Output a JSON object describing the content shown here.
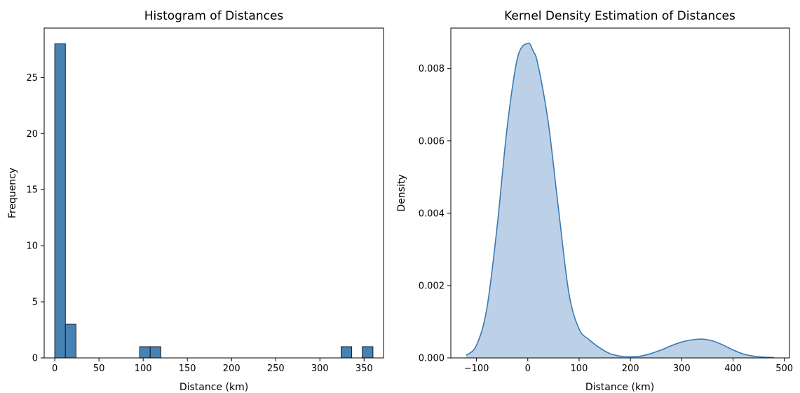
{
  "chart_data": [
    {
      "type": "bar",
      "title": "Histogram of Distances",
      "xlabel": "Distance (km)",
      "ylabel": "Frequency",
      "xlim": [
        -12.0,
        372.0
      ],
      "ylim": [
        0,
        29.4
      ],
      "xticks": [
        "0",
        "50",
        "100",
        "150",
        "200",
        "250",
        "300",
        "350"
      ],
      "yticks": [
        "0",
        "5",
        "10",
        "15",
        "20",
        "25"
      ],
      "bin_width": 12.0,
      "bins": [
        {
          "x0": 0.0,
          "count": 28
        },
        {
          "x0": 12.0,
          "count": 3
        },
        {
          "x0": 24.0,
          "count": 0
        },
        {
          "x0": 36.0,
          "count": 0
        },
        {
          "x0": 48.0,
          "count": 0
        },
        {
          "x0": 60.0,
          "count": 0
        },
        {
          "x0": 72.0,
          "count": 0
        },
        {
          "x0": 84.0,
          "count": 0
        },
        {
          "x0": 96.0,
          "count": 1
        },
        {
          "x0": 108.0,
          "count": 1
        },
        {
          "x0": 120.0,
          "count": 0
        },
        {
          "x0": 132.0,
          "count": 0
        },
        {
          "x0": 144.0,
          "count": 0
        },
        {
          "x0": 156.0,
          "count": 0
        },
        {
          "x0": 168.0,
          "count": 0
        },
        {
          "x0": 180.0,
          "count": 0
        },
        {
          "x0": 192.0,
          "count": 0
        },
        {
          "x0": 204.0,
          "count": 0
        },
        {
          "x0": 216.0,
          "count": 0
        },
        {
          "x0": 228.0,
          "count": 0
        },
        {
          "x0": 240.0,
          "count": 0
        },
        {
          "x0": 252.0,
          "count": 0
        },
        {
          "x0": 264.0,
          "count": 0
        },
        {
          "x0": 276.0,
          "count": 0
        },
        {
          "x0": 288.0,
          "count": 0
        },
        {
          "x0": 300.0,
          "count": 0
        },
        {
          "x0": 312.0,
          "count": 0
        },
        {
          "x0": 324.0,
          "count": 1
        },
        {
          "x0": 336.0,
          "count": 0
        },
        {
          "x0": 348.0,
          "count": 1
        }
      ],
      "bar_color": "#4682b4",
      "edge_color": "#1a1a1a",
      "grid": false
    },
    {
      "type": "area",
      "title": "Kernel Density Estimation of Distances",
      "xlabel": "Distance (km)",
      "ylabel": "Density",
      "xlim": [
        -150,
        510
      ],
      "ylim": [
        0,
        0.00912
      ],
      "xticks": [
        "−100",
        "0",
        "100",
        "200",
        "300",
        "400",
        "500"
      ],
      "yticks": [
        "0.000",
        "0.002",
        "0.004",
        "0.006",
        "0.008"
      ],
      "x": [
        -120,
        -100,
        -80,
        -60,
        -40,
        -20,
        0,
        10,
        20,
        40,
        60,
        80,
        100,
        120,
        140,
        160,
        180,
        200,
        220,
        240,
        260,
        280,
        300,
        320,
        340,
        360,
        380,
        400,
        420,
        440,
        460,
        480
      ],
      "y": [
        7e-05,
        0.00035,
        0.00135,
        0.0036,
        0.0064,
        0.0083,
        0.0087,
        0.0085,
        0.0081,
        0.0065,
        0.0041,
        0.0018,
        0.0008,
        0.0005,
        0.00028,
        0.00012,
        5e-05,
        3e-05,
        5e-05,
        0.00012,
        0.00022,
        0.00034,
        0.00044,
        0.0005,
        0.00052,
        0.00047,
        0.00036,
        0.00022,
        0.00011,
        5e-05,
        2e-05,
        1e-05
      ],
      "line_color": "#3a7ab0",
      "fill_color": "#b8cfe6",
      "grid": false
    }
  ]
}
